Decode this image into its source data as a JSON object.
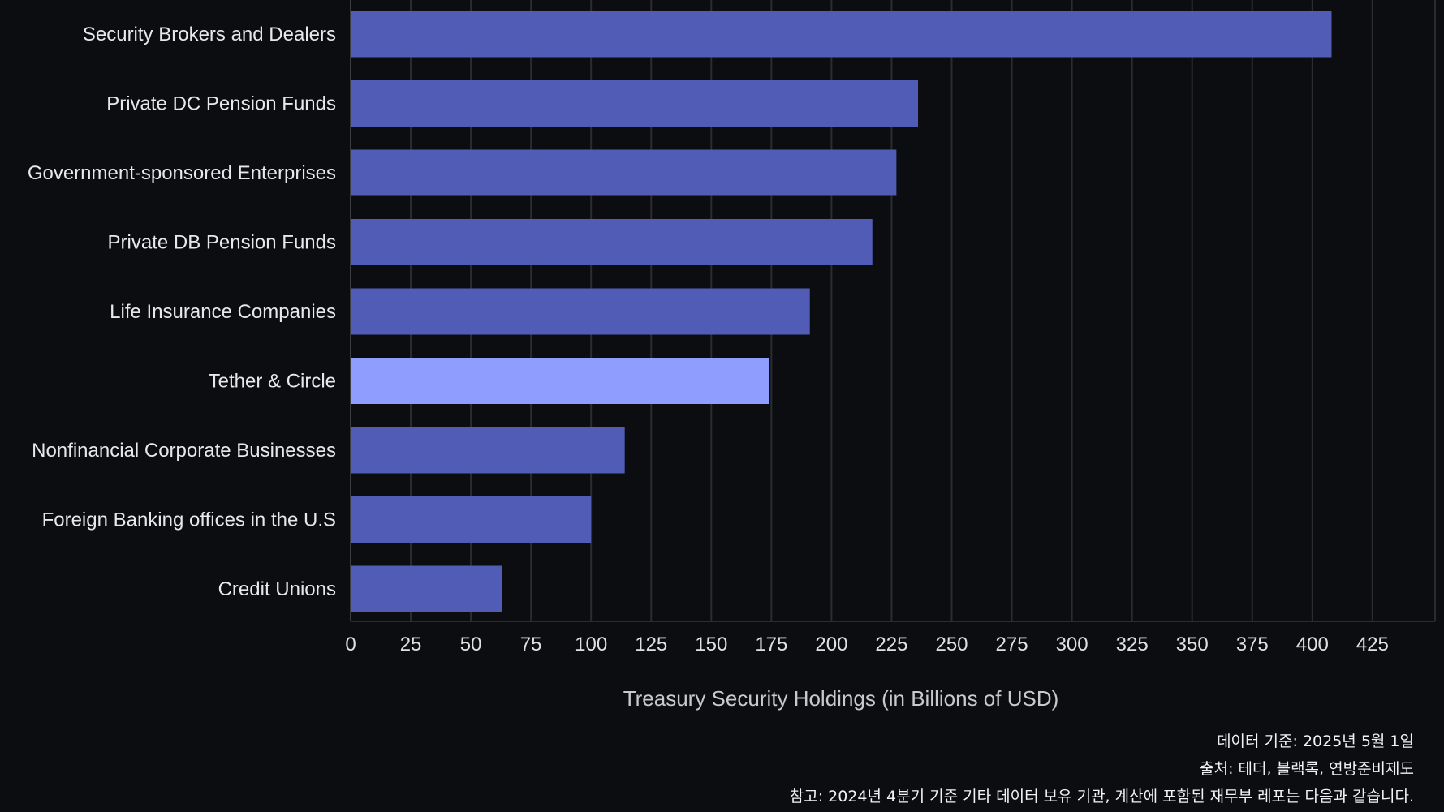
{
  "chart_data": {
    "type": "bar",
    "orientation": "horizontal",
    "categories": [
      "Security Brokers and Dealers",
      "Private DC Pension Funds",
      "Government-sponsored Enterprises",
      "Private DB Pension Funds",
      "Life Insurance Companies",
      "Tether & Circle",
      "Nonfinancial Corporate Businesses",
      "Foreign Banking offices in the U.S",
      "Credit Unions"
    ],
    "values": [
      408,
      236,
      227,
      217,
      191,
      174,
      114,
      100,
      63
    ],
    "highlight_category": "Tether & Circle",
    "xlabel": "Treasury Security Holdings (in Billions of USD)",
    "ylabel": "",
    "xlim": [
      0,
      450
    ],
    "xticks": [
      0,
      25,
      50,
      75,
      100,
      125,
      150,
      175,
      200,
      225,
      250,
      275,
      300,
      325,
      350,
      375,
      400,
      425
    ],
    "grid": "vertical",
    "colors": {
      "bar": "#505cb6",
      "highlight": "#8f9dfe",
      "background": "#0c0d10",
      "grid": "#2a2c31"
    }
  },
  "notes": [
    "데이터 기준: 2025년 5월 1일",
    "출처: 테더, 블랙록, 연방준비제도",
    "참고: 2024년 4분기 기준 기타 데이터 보유 기관, 계산에 포함된 재무부 레포는 다음과 같습니다."
  ]
}
